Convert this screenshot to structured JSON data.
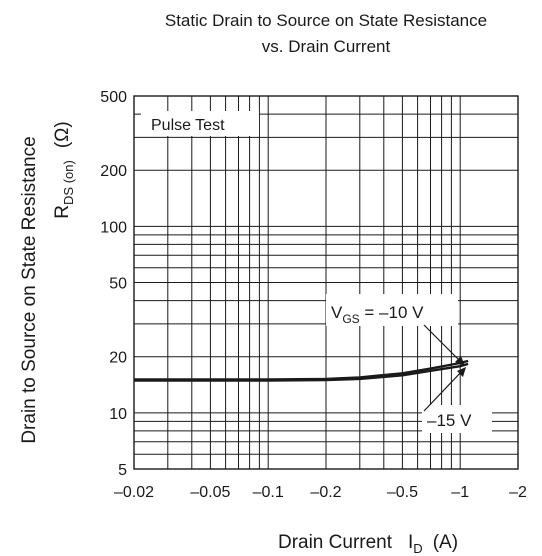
{
  "chart_data": {
    "type": "line",
    "title": "Static Drain to Source on State Resistance",
    "subtitle": "vs. Drain Current",
    "xlabel": {
      "main": "Drain Current",
      "sym": "I",
      "sub": "D",
      "unit": "(A)"
    },
    "ylabel": {
      "main": "Drain to Source on State Resistance",
      "sym": "R",
      "sub": "DS (on)",
      "unit": "(Ω)"
    },
    "x_scale": "log",
    "y_scale": "log",
    "xlim": [
      -0.02,
      -2
    ],
    "ylim": [
      5,
      500
    ],
    "x_ticks": [
      {
        "value": -0.02,
        "label": "–0.02"
      },
      {
        "value": -0.05,
        "label": "–0.05"
      },
      {
        "value": -0.1,
        "label": "–0.1"
      },
      {
        "value": -0.2,
        "label": "–0.2"
      },
      {
        "value": -0.5,
        "label": "–0.5"
      },
      {
        "value": -1,
        "label": "–1"
      },
      {
        "value": -2,
        "label": "–2"
      }
    ],
    "y_ticks": [
      {
        "value": 5,
        "label": "5"
      },
      {
        "value": 10,
        "label": "10"
      },
      {
        "value": 20,
        "label": "20"
      },
      {
        "value": 50,
        "label": "50"
      },
      {
        "value": 100,
        "label": "100"
      },
      {
        "value": 200,
        "label": "200"
      },
      {
        "value": 500,
        "label": "500"
      }
    ],
    "grid": true,
    "condition_label": "Pulse Test",
    "series": [
      {
        "label_sym": "V",
        "label_sub": "GS",
        "label_value": " = –10 V",
        "x": [
          -0.02,
          -0.1,
          -0.2,
          -0.3,
          -0.5,
          -0.7,
          -1.0,
          -1.1
        ],
        "y": [
          15.1,
          15.1,
          15.2,
          15.5,
          16.3,
          17.3,
          18.5,
          19.0
        ]
      },
      {
        "label_value": "–15 V",
        "x": [
          -0.02,
          -0.1,
          -0.2,
          -0.3,
          -0.5,
          -0.7,
          -1.0,
          -1.1
        ],
        "y": [
          14.9,
          14.9,
          15.0,
          15.2,
          15.9,
          16.8,
          17.8,
          18.3
        ]
      }
    ]
  }
}
